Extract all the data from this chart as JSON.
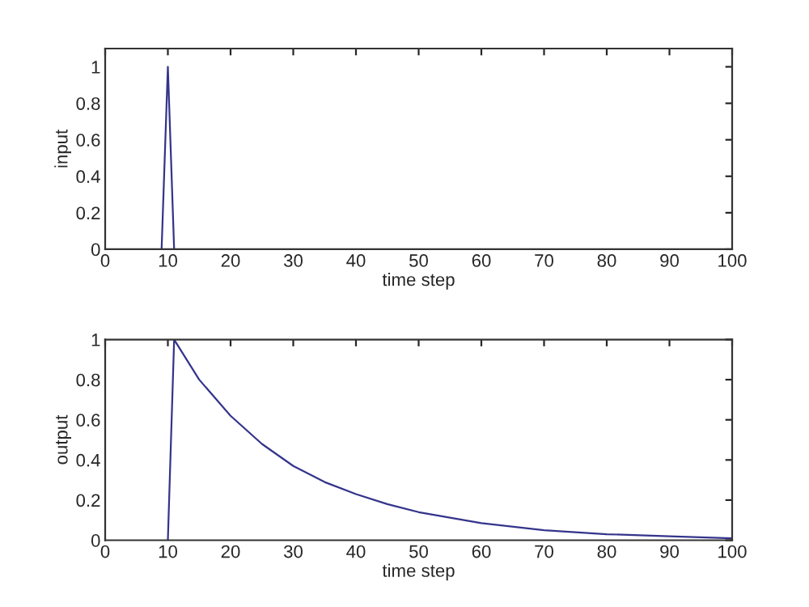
{
  "chart_data": [
    {
      "type": "line",
      "xlabel": "time step",
      "ylabel": "input",
      "xlim": [
        0,
        100
      ],
      "xticks": [
        0,
        10,
        20,
        30,
        40,
        50,
        60,
        70,
        80,
        90,
        100
      ],
      "ylim": [
        0,
        1.1
      ],
      "yticks": [
        0,
        0.2,
        0.4,
        0.6,
        0.8,
        1
      ],
      "grid": false,
      "legend": false,
      "series": [
        {
          "color": "#34348c",
          "x": [
            9,
            10,
            11
          ],
          "values": [
            0,
            1,
            0
          ]
        }
      ]
    },
    {
      "type": "line",
      "xlabel": "time step",
      "ylabel": "output",
      "xlim": [
        0,
        100
      ],
      "xticks": [
        0,
        10,
        20,
        30,
        40,
        50,
        60,
        70,
        80,
        90,
        100
      ],
      "ylim": [
        0,
        1
      ],
      "yticks": [
        0,
        0.2,
        0.4,
        0.6,
        0.8,
        1
      ],
      "grid": false,
      "legend": false,
      "series": [
        {
          "color": "#34348c",
          "x": [
            10,
            11,
            15,
            20,
            25,
            30,
            35,
            40,
            45,
            50,
            60,
            70,
            80,
            90,
            100
          ],
          "values": [
            0,
            1,
            0.8,
            0.62,
            0.48,
            0.37,
            0.29,
            0.23,
            0.18,
            0.14,
            0.085,
            0.05,
            0.03,
            0.02,
            0.01
          ]
        }
      ]
    }
  ]
}
